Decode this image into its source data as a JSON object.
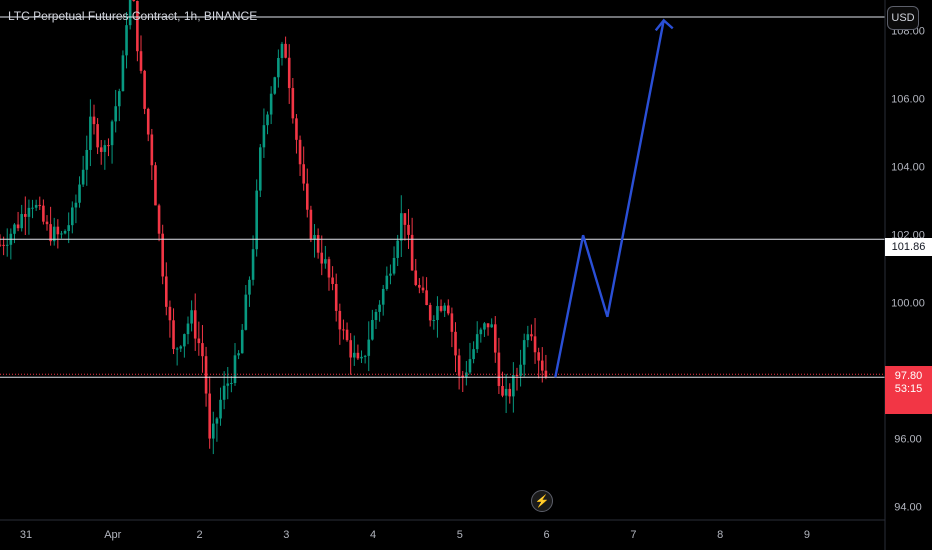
{
  "header": {
    "title": "LTC Perpetual Futures Contract, 1h, BINANCE"
  },
  "toolbar": {
    "currency_label": "USD"
  },
  "flash_icon": "lightning-bolt-icon",
  "colors": {
    "up": "#089981",
    "down": "#f23645",
    "projection": "#2a4fd6",
    "level_line": "#e0e3eb",
    "background": "#000000"
  },
  "price_tags": {
    "level": "101.86",
    "last_price": "97.80",
    "countdown": "53:15"
  },
  "chart_data": {
    "type": "candlestick",
    "symbol": "LTC Perpetual Futures Contract",
    "interval": "1h",
    "exchange": "BINANCE",
    "ylim": [
      93.6,
      108.9
    ],
    "y_ticks": [
      94.0,
      96.0,
      98.0,
      100.0,
      102.0,
      104.0,
      106.0,
      108.0
    ],
    "y_tick_labels": [
      "94.00",
      "96.00",
      "98.00",
      "100.00",
      "102.00",
      "104.00",
      "106.00",
      "108.00"
    ],
    "x_ticks": [
      "31",
      "Apr",
      "2",
      "3",
      "4",
      "5",
      "6",
      "7",
      "8",
      "9"
    ],
    "x_tick_days": [
      -1,
      0,
      1,
      2,
      3,
      4,
      5,
      6,
      7,
      8
    ],
    "xlim_days": [
      -1.3,
      8.9
    ],
    "horizontal_levels": [
      108.4,
      101.86,
      97.8
    ],
    "last_price": 97.8,
    "projection": [
      {
        "t": 5.1,
        "price": 97.8
      },
      {
        "t": 5.42,
        "price": 101.98
      },
      {
        "t": 5.7,
        "price": 99.58
      },
      {
        "t": 6.35,
        "price": 108.3
      }
    ],
    "close_anchors": [
      {
        "t": -1.3,
        "price": 101.7
      },
      {
        "t": -1.1,
        "price": 102.3
      },
      {
        "t": -0.95,
        "price": 103.1
      },
      {
        "t": -0.75,
        "price": 102.1
      },
      {
        "t": -0.6,
        "price": 101.9
      },
      {
        "t": -0.45,
        "price": 102.6
      },
      {
        "t": -0.25,
        "price": 105.3
      },
      {
        "t": -0.1,
        "price": 104.4
      },
      {
        "t": 0.1,
        "price": 106.5
      },
      {
        "t": 0.2,
        "price": 109.7
      },
      {
        "t": 0.35,
        "price": 106.0
      },
      {
        "t": 0.45,
        "price": 104.2
      },
      {
        "t": 0.55,
        "price": 101.5
      },
      {
        "t": 0.7,
        "price": 98.5
      },
      {
        "t": 0.9,
        "price": 99.6
      },
      {
        "t": 1.05,
        "price": 98.3
      },
      {
        "t": 1.12,
        "price": 95.7
      },
      {
        "t": 1.25,
        "price": 97.2
      },
      {
        "t": 1.45,
        "price": 98.4
      },
      {
        "t": 1.6,
        "price": 101.2
      },
      {
        "t": 1.72,
        "price": 105.0
      },
      {
        "t": 1.85,
        "price": 106.6
      },
      {
        "t": 1.98,
        "price": 107.6
      },
      {
        "t": 2.1,
        "price": 105.2
      },
      {
        "t": 2.25,
        "price": 102.3
      },
      {
        "t": 2.45,
        "price": 101.1
      },
      {
        "t": 2.65,
        "price": 99.1
      },
      {
        "t": 2.85,
        "price": 98.0
      },
      {
        "t": 3.0,
        "price": 99.5
      },
      {
        "t": 3.15,
        "price": 100.6
      },
      {
        "t": 3.35,
        "price": 102.8
      },
      {
        "t": 3.45,
        "price": 100.9
      },
      {
        "t": 3.65,
        "price": 99.6
      },
      {
        "t": 3.85,
        "price": 100.2
      },
      {
        "t": 4.0,
        "price": 97.6
      },
      {
        "t": 4.2,
        "price": 98.9
      },
      {
        "t": 4.35,
        "price": 99.5
      },
      {
        "t": 4.5,
        "price": 97.0
      },
      {
        "t": 4.65,
        "price": 97.8
      },
      {
        "t": 4.8,
        "price": 99.5
      },
      {
        "t": 4.9,
        "price": 98.5
      },
      {
        "t": 5.0,
        "price": 97.8
      }
    ]
  }
}
